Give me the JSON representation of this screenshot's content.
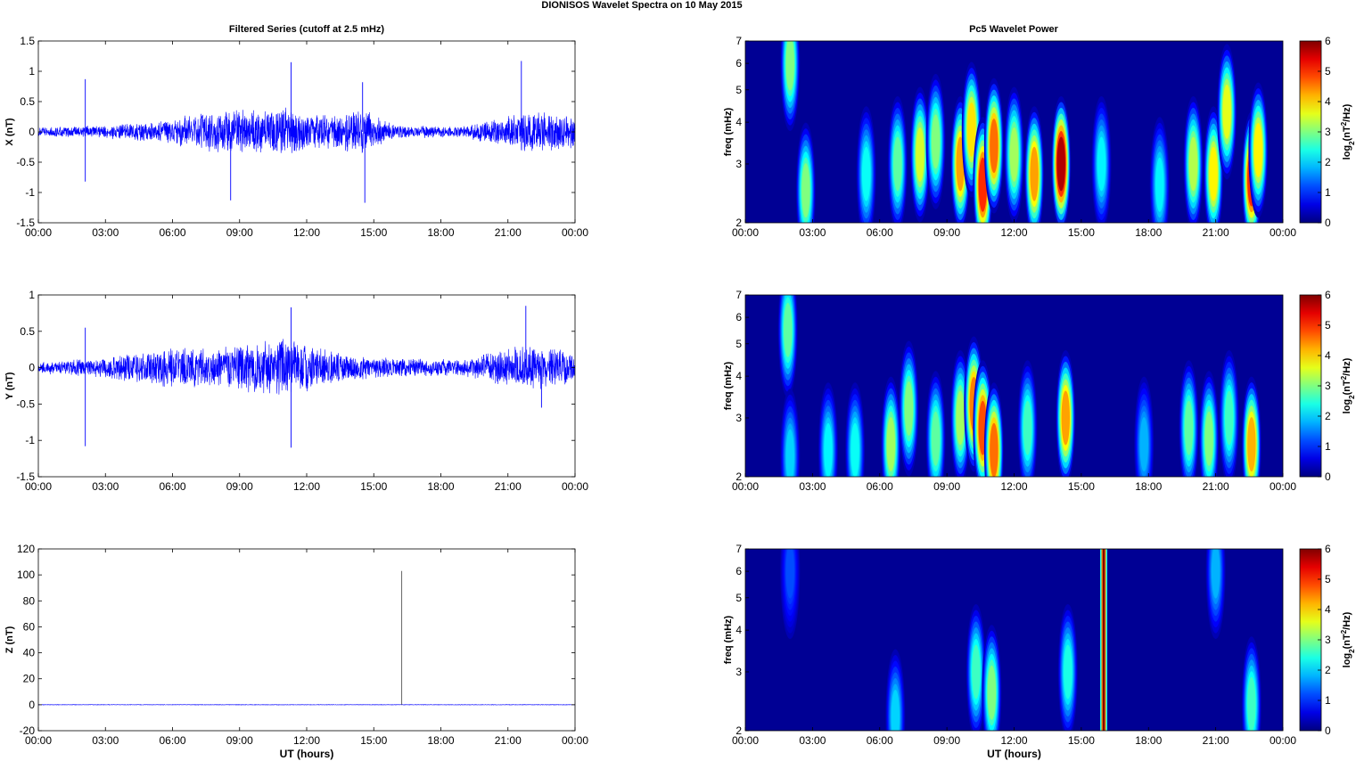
{
  "figure": {
    "title": "DIONISOS Wavelet Spectra on 10 May      2015",
    "left_title": "Filtered Series (cutoff at 2.5 mHz)",
    "right_title": "Pc5 Wavelet Power"
  },
  "chart_data": [
    {
      "type": "line",
      "panel": "x-series",
      "title": "Filtered Series (cutoff at 2.5 mHz)",
      "xlabel": "",
      "ylabel": "X (nT)",
      "xlim": [
        0,
        24
      ],
      "ylim": [
        -1.5,
        1.5
      ],
      "xticks": [
        "00:00",
        "03:00",
        "06:00",
        "09:00",
        "12:00",
        "15:00",
        "18:00",
        "21:00",
        "00:00"
      ],
      "yticks": [
        "-1.5",
        "-1",
        "-0.5",
        "0",
        "0.5",
        "1",
        "1.5"
      ],
      "series_color": "#0000ff",
      "spikes": [
        {
          "x": 2.1,
          "y": 0.87
        },
        {
          "x": 2.1,
          "y": -0.82
        },
        {
          "x": 8.6,
          "y": -1.13
        },
        {
          "x": 11.3,
          "y": 1.15
        },
        {
          "x": 14.5,
          "y": 0.82
        },
        {
          "x": 14.6,
          "y": -1.17
        },
        {
          "x": 21.6,
          "y": 1.17
        }
      ],
      "envelope": [
        {
          "x": 0,
          "a": 0.08
        },
        {
          "x": 3,
          "a": 0.12
        },
        {
          "x": 5,
          "a": 0.18
        },
        {
          "x": 8,
          "a": 0.38
        },
        {
          "x": 11,
          "a": 0.42
        },
        {
          "x": 13,
          "a": 0.3
        },
        {
          "x": 14.5,
          "a": 0.4
        },
        {
          "x": 16,
          "a": 0.12
        },
        {
          "x": 19,
          "a": 0.1
        },
        {
          "x": 20,
          "a": 0.2
        },
        {
          "x": 22,
          "a": 0.38
        },
        {
          "x": 24,
          "a": 0.3
        }
      ]
    },
    {
      "type": "line",
      "panel": "y-series",
      "title": "",
      "xlabel": "",
      "ylabel": "Y (nT)",
      "xlim": [
        0,
        24
      ],
      "ylim": [
        -1.5,
        1
      ],
      "xticks": [
        "00:00",
        "03:00",
        "06:00",
        "09:00",
        "12:00",
        "15:00",
        "18:00",
        "21:00",
        "00:00"
      ],
      "yticks": [
        "-1.5",
        "-1",
        "-0.5",
        "0",
        "0.5",
        "1"
      ],
      "series_color": "#0000ff",
      "spikes": [
        {
          "x": 2.1,
          "y": 0.55
        },
        {
          "x": 2.1,
          "y": -1.08
        },
        {
          "x": 11.3,
          "y": 0.83
        },
        {
          "x": 11.3,
          "y": -1.1
        },
        {
          "x": 21.8,
          "y": 0.85
        },
        {
          "x": 22.5,
          "y": -0.55
        }
      ],
      "envelope": [
        {
          "x": 0,
          "a": 0.08
        },
        {
          "x": 3,
          "a": 0.15
        },
        {
          "x": 6,
          "a": 0.3
        },
        {
          "x": 8,
          "a": 0.28
        },
        {
          "x": 11,
          "a": 0.45
        },
        {
          "x": 13,
          "a": 0.25
        },
        {
          "x": 15,
          "a": 0.15
        },
        {
          "x": 19,
          "a": 0.12
        },
        {
          "x": 20.5,
          "a": 0.25
        },
        {
          "x": 22,
          "a": 0.35
        },
        {
          "x": 24,
          "a": 0.22
        }
      ]
    },
    {
      "type": "line",
      "panel": "z-series",
      "title": "",
      "xlabel": "UT (hours)",
      "ylabel": "Z (nT)",
      "xlim": [
        0,
        24
      ],
      "ylim": [
        -20,
        120
      ],
      "xticks": [
        "00:00",
        "03:00",
        "06:00",
        "09:00",
        "12:00",
        "15:00",
        "18:00",
        "21:00",
        "00:00"
      ],
      "yticks": [
        "-20",
        "0",
        "20",
        "40",
        "60",
        "80",
        "100",
        "120"
      ],
      "series_color": "#0000ff",
      "spikes": [
        {
          "x": 16.25,
          "y": 103
        }
      ],
      "envelope": [
        {
          "x": 0,
          "a": 0.3
        },
        {
          "x": 24,
          "a": 0.3
        }
      ]
    },
    {
      "type": "heatmap",
      "panel": "x-power",
      "title": "Pc5 Wavelet Power",
      "xlabel": "",
      "ylabel": "freq (mHz)",
      "xlim": [
        0,
        24
      ],
      "ylim": [
        2,
        7
      ],
      "yscale": "log",
      "xticks": [
        "00:00",
        "03:00",
        "06:00",
        "09:00",
        "12:00",
        "15:00",
        "18:00",
        "21:00",
        "00:00"
      ],
      "yticks": [
        "2",
        "3",
        "4",
        "5",
        "6",
        "7"
      ],
      "colorbar": {
        "label": "log2(nT2/Hz)",
        "ticks": [
          "0",
          "1",
          "2",
          "3",
          "4",
          "5",
          "6"
        ],
        "range": [
          0,
          6
        ]
      },
      "blobs": [
        {
          "t": 2.0,
          "f": 6.0,
          "v": 3.0
        },
        {
          "t": 2.7,
          "f": 2.5,
          "v": 3.0
        },
        {
          "t": 5.4,
          "f": 2.8,
          "v": 2.3
        },
        {
          "t": 6.8,
          "f": 3.0,
          "v": 2.8
        },
        {
          "t": 7.8,
          "f": 3.2,
          "v": 3.5
        },
        {
          "t": 8.5,
          "f": 3.5,
          "v": 3.0
        },
        {
          "t": 9.6,
          "f": 3.0,
          "v": 4.3
        },
        {
          "t": 10.1,
          "f": 3.8,
          "v": 3.9
        },
        {
          "t": 10.6,
          "f": 2.6,
          "v": 5.0
        },
        {
          "t": 11.1,
          "f": 3.4,
          "v": 4.6
        },
        {
          "t": 12.0,
          "f": 3.2,
          "v": 3.2
        },
        {
          "t": 12.9,
          "f": 2.8,
          "v": 4.3
        },
        {
          "t": 14.1,
          "f": 3.0,
          "v": 5.7
        },
        {
          "t": 15.9,
          "f": 3.0,
          "v": 2.2
        },
        {
          "t": 18.5,
          "f": 2.6,
          "v": 2.2
        },
        {
          "t": 20.0,
          "f": 3.0,
          "v": 3.3
        },
        {
          "t": 20.9,
          "f": 2.8,
          "v": 3.8
        },
        {
          "t": 21.5,
          "f": 4.3,
          "v": 3.6
        },
        {
          "t": 22.6,
          "f": 2.7,
          "v": 5.0
        },
        {
          "t": 22.9,
          "f": 3.3,
          "v": 3.8
        }
      ]
    },
    {
      "type": "heatmap",
      "panel": "y-power",
      "title": "",
      "xlabel": "",
      "ylabel": "freq (mHz)",
      "xlim": [
        0,
        24
      ],
      "ylim": [
        2,
        7
      ],
      "yscale": "log",
      "xticks": [
        "00:00",
        "03:00",
        "06:00",
        "09:00",
        "12:00",
        "15:00",
        "18:00",
        "21:00",
        "00:00"
      ],
      "yticks": [
        "2",
        "3",
        "4",
        "5",
        "6",
        "7"
      ],
      "colorbar": {
        "label": "log2(nT2/Hz)",
        "ticks": [
          "0",
          "1",
          "2",
          "3",
          "4",
          "5",
          "6"
        ],
        "range": [
          0,
          6
        ]
      },
      "blobs": [
        {
          "t": 1.9,
          "f": 5.5,
          "v": 2.8
        },
        {
          "t": 2.0,
          "f": 2.3,
          "v": 2.0
        },
        {
          "t": 3.7,
          "f": 2.4,
          "v": 2.2
        },
        {
          "t": 4.9,
          "f": 2.4,
          "v": 2.3
        },
        {
          "t": 6.5,
          "f": 2.5,
          "v": 3.2
        },
        {
          "t": 7.3,
          "f": 3.2,
          "v": 3.0
        },
        {
          "t": 8.5,
          "f": 2.6,
          "v": 2.8
        },
        {
          "t": 9.6,
          "f": 3.0,
          "v": 3.2
        },
        {
          "t": 10.2,
          "f": 3.3,
          "v": 4.5
        },
        {
          "t": 10.6,
          "f": 2.8,
          "v": 4.8
        },
        {
          "t": 11.1,
          "f": 2.4,
          "v": 4.6
        },
        {
          "t": 12.6,
          "f": 2.8,
          "v": 2.6
        },
        {
          "t": 14.3,
          "f": 3.0,
          "v": 4.3
        },
        {
          "t": 17.8,
          "f": 2.5,
          "v": 1.8
        },
        {
          "t": 19.8,
          "f": 2.8,
          "v": 2.8
        },
        {
          "t": 20.7,
          "f": 2.6,
          "v": 3.0
        },
        {
          "t": 21.6,
          "f": 3.0,
          "v": 2.6
        },
        {
          "t": 22.6,
          "f": 2.5,
          "v": 4.2
        }
      ]
    },
    {
      "type": "heatmap",
      "panel": "z-power",
      "title": "",
      "xlabel": "UT (hours)",
      "ylabel": "freq (mHz)",
      "xlim": [
        0,
        24
      ],
      "ylim": [
        2,
        7
      ],
      "yscale": "log",
      "xticks": [
        "00:00",
        "03:00",
        "06:00",
        "09:00",
        "12:00",
        "15:00",
        "18:00",
        "21:00",
        "00:00"
      ],
      "yticks": [
        "2",
        "3",
        "4",
        "5",
        "6",
        "7"
      ],
      "colorbar": {
        "label": "log2(nT2/Hz)",
        "ticks": [
          "0",
          "1",
          "2",
          "3",
          "4",
          "5",
          "6"
        ],
        "range": [
          0,
          6
        ]
      },
      "blobs": [
        {
          "t": 2.0,
          "f": 6.0,
          "v": 1.2
        },
        {
          "t": 6.7,
          "f": 2.2,
          "v": 2.0
        },
        {
          "t": 10.3,
          "f": 3.0,
          "v": 2.6
        },
        {
          "t": 11.0,
          "f": 2.6,
          "v": 3.0
        },
        {
          "t": 14.4,
          "f": 3.0,
          "v": 2.4
        },
        {
          "t": 21.0,
          "f": 6.0,
          "v": 1.8
        },
        {
          "t": 22.6,
          "f": 2.4,
          "v": 2.6
        }
      ],
      "vertical_lines": [
        {
          "t": 16.0,
          "v": 6.0
        }
      ]
    }
  ]
}
